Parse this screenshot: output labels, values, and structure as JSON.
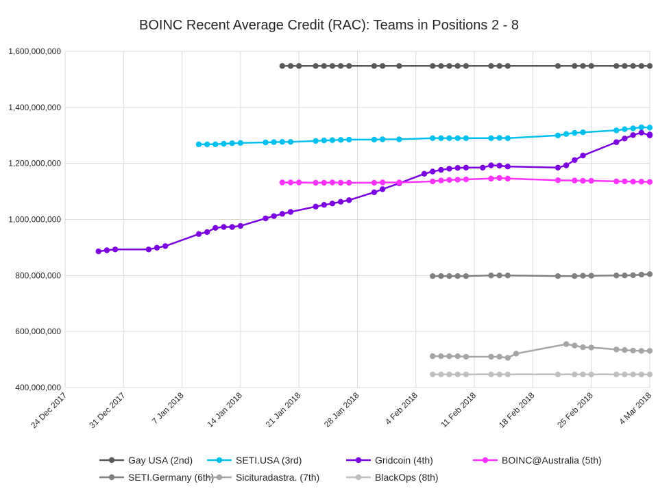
{
  "chart_data": {
    "type": "line",
    "title": "BOINC Recent Average Credit (RAC): Teams in Positions 2 - 8",
    "xlabel": "",
    "ylabel": "",
    "ylim": [
      400000000,
      1600000000
    ],
    "y_ticks": [
      400000000,
      600000000,
      800000000,
      1000000000,
      1200000000,
      1400000000,
      1600000000
    ],
    "y_tick_labels": [
      "400,000,000",
      "600,000,000",
      "800,000,000",
      "1,000,000,000",
      "1,200,000,000",
      "1,400,000,000",
      "1,600,000,000"
    ],
    "x_range": [
      "2017-12-24",
      "2018-03-04"
    ],
    "x_ticks": [
      "2017-12-24",
      "2017-12-31",
      "2018-01-07",
      "2018-01-14",
      "2018-01-21",
      "2018-01-28",
      "2018-02-04",
      "2018-02-11",
      "2018-02-18",
      "2018-02-25",
      "2018-03-04"
    ],
    "x_tick_labels": [
      "24 Dec 2017",
      "31 Dec 2017",
      "7 Jan 2018",
      "14 Jan 2018",
      "21 Jan 2018",
      "28 Jan 2018",
      "4 Feb 2018",
      "11 Feb 2018",
      "18 Feb 2018",
      "25 Feb 2018",
      "4 Mar 2018"
    ],
    "grid": true,
    "legend_position": "bottom",
    "series": [
      {
        "name": "Gay USA (2nd)",
        "color": "#595959",
        "points": [
          [
            "2018-01-19",
            1548000000
          ],
          [
            "2018-01-20",
            1548000000
          ],
          [
            "2018-01-21",
            1548000000
          ],
          [
            "2018-01-23",
            1548000000
          ],
          [
            "2018-01-24",
            1548000000
          ],
          [
            "2018-01-25",
            1548000000
          ],
          [
            "2018-01-26",
            1548000000
          ],
          [
            "2018-01-27",
            1548000000
          ],
          [
            "2018-01-30",
            1548000000
          ],
          [
            "2018-01-31",
            1548000000
          ],
          [
            "2018-02-02",
            1548000000
          ],
          [
            "2018-02-06",
            1548000000
          ],
          [
            "2018-02-07",
            1548000000
          ],
          [
            "2018-02-08",
            1548000000
          ],
          [
            "2018-02-09",
            1548000000
          ],
          [
            "2018-02-10",
            1548000000
          ],
          [
            "2018-02-13",
            1548000000
          ],
          [
            "2018-02-14",
            1548000000
          ],
          [
            "2018-02-15",
            1548000000
          ],
          [
            "2018-02-21",
            1548000000
          ],
          [
            "2018-02-23",
            1548000000
          ],
          [
            "2018-02-24",
            1548000000
          ],
          [
            "2018-02-25",
            1548000000
          ],
          [
            "2018-02-28",
            1548000000
          ],
          [
            "2018-03-01",
            1548000000
          ],
          [
            "2018-03-02",
            1548000000
          ],
          [
            "2018-03-03",
            1548000000
          ],
          [
            "2018-03-04",
            1548000000
          ]
        ]
      },
      {
        "name": "SETI.USA (3rd)",
        "color": "#00C0EF",
        "points": [
          [
            "2018-01-09",
            1268000000
          ],
          [
            "2018-01-10",
            1268000000
          ],
          [
            "2018-01-11",
            1268000000
          ],
          [
            "2018-01-12",
            1270000000
          ],
          [
            "2018-01-13",
            1272000000
          ],
          [
            "2018-01-14",
            1273000000
          ],
          [
            "2018-01-17",
            1275000000
          ],
          [
            "2018-01-18",
            1276000000
          ],
          [
            "2018-01-19",
            1277000000
          ],
          [
            "2018-01-20",
            1277000000
          ],
          [
            "2018-01-23",
            1280000000
          ],
          [
            "2018-01-24",
            1282000000
          ],
          [
            "2018-01-25",
            1283000000
          ],
          [
            "2018-01-26",
            1284000000
          ],
          [
            "2018-01-27",
            1285000000
          ],
          [
            "2018-01-30",
            1285000000
          ],
          [
            "2018-01-31",
            1286000000
          ],
          [
            "2018-02-02",
            1286000000
          ],
          [
            "2018-02-06",
            1290000000
          ],
          [
            "2018-02-07",
            1290000000
          ],
          [
            "2018-02-08",
            1290000000
          ],
          [
            "2018-02-09",
            1290000000
          ],
          [
            "2018-02-10",
            1290000000
          ],
          [
            "2018-02-13",
            1290000000
          ],
          [
            "2018-02-14",
            1291000000
          ],
          [
            "2018-02-15",
            1290000000
          ],
          [
            "2018-02-21",
            1300000000
          ],
          [
            "2018-02-22",
            1305000000
          ],
          [
            "2018-02-23",
            1309000000
          ],
          [
            "2018-02-24",
            1311000000
          ],
          [
            "2018-02-28",
            1318000000
          ],
          [
            "2018-03-01",
            1322000000
          ],
          [
            "2018-03-02",
            1325000000
          ],
          [
            "2018-03-03",
            1329000000
          ],
          [
            "2018-03-04",
            1328000000
          ]
        ]
      },
      {
        "name": "Gridcoin (4th)",
        "color": "#7B00E0",
        "points": [
          [
            "2017-12-28",
            886000000
          ],
          [
            "2017-12-29",
            890000000
          ],
          [
            "2017-12-30",
            893000000
          ],
          [
            "2018-01-03",
            893000000
          ],
          [
            "2018-01-04",
            899000000
          ],
          [
            "2018-01-05",
            905000000
          ],
          [
            "2018-01-09",
            948000000
          ],
          [
            "2018-01-10",
            955000000
          ],
          [
            "2018-01-11",
            970000000
          ],
          [
            "2018-01-12",
            973000000
          ],
          [
            "2018-01-13",
            973000000
          ],
          [
            "2018-01-14",
            977000000
          ],
          [
            "2018-01-17",
            1004000000
          ],
          [
            "2018-01-18",
            1012000000
          ],
          [
            "2018-01-19",
            1020000000
          ],
          [
            "2018-01-20",
            1027000000
          ],
          [
            "2018-01-23",
            1046000000
          ],
          [
            "2018-01-24",
            1052000000
          ],
          [
            "2018-01-25",
            1057000000
          ],
          [
            "2018-01-26",
            1063000000
          ],
          [
            "2018-01-27",
            1069000000
          ],
          [
            "2018-01-30",
            1097000000
          ],
          [
            "2018-01-31",
            1108000000
          ],
          [
            "2018-02-02",
            1129000000
          ],
          [
            "2018-02-05",
            1163000000
          ],
          [
            "2018-02-06",
            1171000000
          ],
          [
            "2018-02-07",
            1177000000
          ],
          [
            "2018-02-08",
            1181000000
          ],
          [
            "2018-02-09",
            1184000000
          ],
          [
            "2018-02-10",
            1185000000
          ],
          [
            "2018-02-12",
            1185000000
          ],
          [
            "2018-02-13",
            1193000000
          ],
          [
            "2018-02-14",
            1192000000
          ],
          [
            "2018-02-15",
            1189000000
          ],
          [
            "2018-02-21",
            1185000000
          ],
          [
            "2018-02-22",
            1193000000
          ],
          [
            "2018-02-23",
            1212000000
          ],
          [
            "2018-02-24",
            1228000000
          ],
          [
            "2018-02-28",
            1276000000
          ],
          [
            "2018-03-01",
            1289000000
          ],
          [
            "2018-03-02",
            1301000000
          ],
          [
            "2018-03-03",
            1310000000
          ],
          [
            "2018-03-04",
            1300000000
          ],
          [
            "2018-03-04",
            1303000000
          ]
        ]
      },
      {
        "name": "BOINC@Australia (5th)",
        "color": "#FF33FF",
        "points": [
          [
            "2018-01-19",
            1132000000
          ],
          [
            "2018-01-20",
            1132000000
          ],
          [
            "2018-01-21",
            1132000000
          ],
          [
            "2018-01-23",
            1131000000
          ],
          [
            "2018-01-24",
            1131000000
          ],
          [
            "2018-01-25",
            1132000000
          ],
          [
            "2018-01-26",
            1131000000
          ],
          [
            "2018-01-27",
            1131000000
          ],
          [
            "2018-01-30",
            1131000000
          ],
          [
            "2018-01-31",
            1132000000
          ],
          [
            "2018-02-02",
            1132000000
          ],
          [
            "2018-02-06",
            1136000000
          ],
          [
            "2018-02-07",
            1139000000
          ],
          [
            "2018-02-08",
            1141000000
          ],
          [
            "2018-02-09",
            1142000000
          ],
          [
            "2018-02-10",
            1143000000
          ],
          [
            "2018-02-13",
            1146000000
          ],
          [
            "2018-02-14",
            1148000000
          ],
          [
            "2018-02-15",
            1146000000
          ],
          [
            "2018-02-21",
            1140000000
          ],
          [
            "2018-02-23",
            1139000000
          ],
          [
            "2018-02-24",
            1138000000
          ],
          [
            "2018-02-25",
            1138000000
          ],
          [
            "2018-02-28",
            1136000000
          ],
          [
            "2018-03-01",
            1136000000
          ],
          [
            "2018-03-02",
            1135000000
          ],
          [
            "2018-03-03",
            1135000000
          ],
          [
            "2018-03-04",
            1134000000
          ]
        ]
      },
      {
        "name": "SETI.Germany (6th)",
        "color": "#7F7F7F",
        "points": [
          [
            "2018-02-06",
            798000000
          ],
          [
            "2018-02-07",
            798000000
          ],
          [
            "2018-02-08",
            798000000
          ],
          [
            "2018-02-09",
            798000000
          ],
          [
            "2018-02-10",
            798000000
          ],
          [
            "2018-02-13",
            800000000
          ],
          [
            "2018-02-14",
            800000000
          ],
          [
            "2018-02-15",
            800000000
          ],
          [
            "2018-02-21",
            798000000
          ],
          [
            "2018-02-23",
            798000000
          ],
          [
            "2018-02-24",
            799000000
          ],
          [
            "2018-02-25",
            799000000
          ],
          [
            "2018-02-28",
            800000000
          ],
          [
            "2018-03-01",
            800000000
          ],
          [
            "2018-03-02",
            801000000
          ],
          [
            "2018-03-03",
            803000000
          ],
          [
            "2018-03-04",
            805000000
          ]
        ]
      },
      {
        "name": "Sicituradastra. (7th)",
        "color": "#A5A5A5",
        "points": [
          [
            "2018-02-06",
            512000000
          ],
          [
            "2018-02-07",
            512000000
          ],
          [
            "2018-02-08",
            512000000
          ],
          [
            "2018-02-09",
            512000000
          ],
          [
            "2018-02-10",
            510000000
          ],
          [
            "2018-02-13",
            510000000
          ],
          [
            "2018-02-14",
            510000000
          ],
          [
            "2018-02-15",
            506000000
          ],
          [
            "2018-02-16",
            521000000
          ],
          [
            "2018-02-22",
            555000000
          ],
          [
            "2018-02-23",
            550000000
          ],
          [
            "2018-02-24",
            544000000
          ],
          [
            "2018-02-25",
            543000000
          ],
          [
            "2018-02-28",
            536000000
          ],
          [
            "2018-03-01",
            534000000
          ],
          [
            "2018-03-02",
            532000000
          ],
          [
            "2018-03-03",
            531000000
          ],
          [
            "2018-03-04",
            531000000
          ]
        ]
      },
      {
        "name": "BlackOps (8th)",
        "color": "#BFBFBF",
        "points": [
          [
            "2018-02-06",
            447000000
          ],
          [
            "2018-02-07",
            447000000
          ],
          [
            "2018-02-08",
            447000000
          ],
          [
            "2018-02-09",
            447000000
          ],
          [
            "2018-02-10",
            447000000
          ],
          [
            "2018-02-13",
            447000000
          ],
          [
            "2018-02-14",
            447000000
          ],
          [
            "2018-02-15",
            447000000
          ],
          [
            "2018-02-21",
            447000000
          ],
          [
            "2018-02-23",
            447000000
          ],
          [
            "2018-02-24",
            447000000
          ],
          [
            "2018-02-25",
            447000000
          ],
          [
            "2018-02-28",
            447000000
          ],
          [
            "2018-03-01",
            447000000
          ],
          [
            "2018-03-02",
            447000000
          ],
          [
            "2018-03-03",
            447000000
          ],
          [
            "2018-03-04",
            447000000
          ]
        ]
      }
    ]
  }
}
